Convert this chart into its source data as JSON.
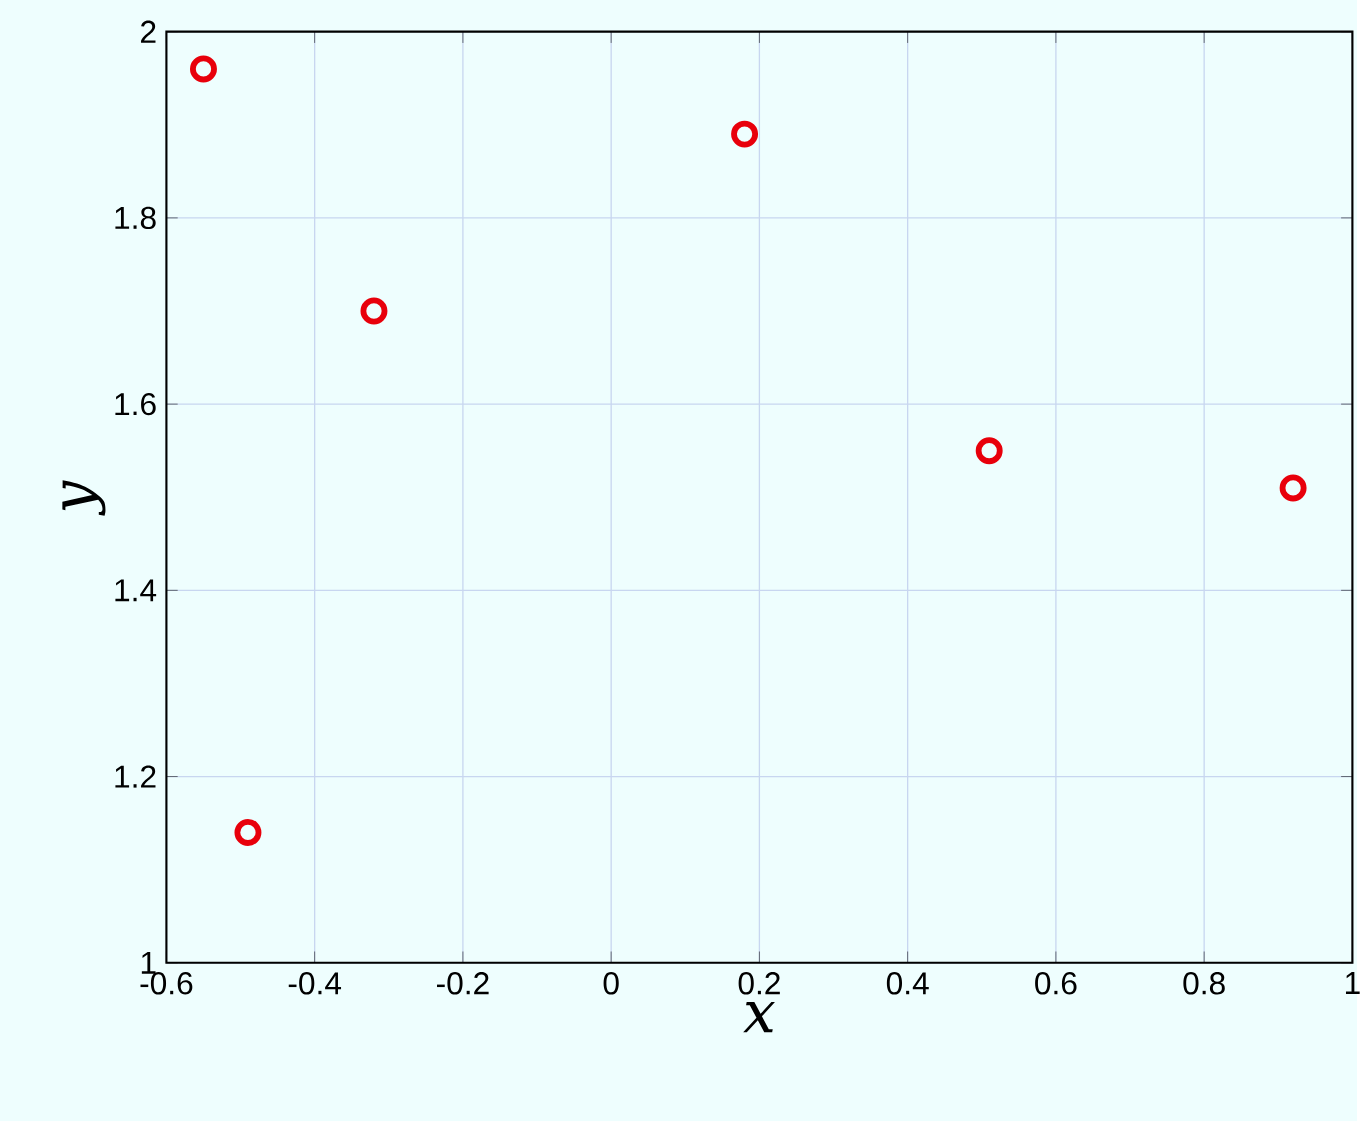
{
  "chart_data": {
    "type": "scatter",
    "xlabel": "x",
    "ylabel": "y",
    "x": [
      -0.55,
      -0.49,
      -0.32,
      0.18,
      0.51,
      0.92
    ],
    "series": [
      {
        "color": "#e8000b",
        "values": [
          1.96,
          1.14,
          1.7,
          1.89,
          1.55,
          1.51
        ]
      }
    ],
    "xlim": [
      -0.6,
      1
    ],
    "ylim": [
      1,
      2
    ],
    "xticks": [
      -0.6,
      -0.4,
      -0.2,
      0,
      0.2,
      0.4,
      0.6,
      0.8,
      1
    ],
    "yticks": [
      1,
      1.2,
      1.4,
      1.6,
      1.8,
      2
    ],
    "grid": true,
    "marker": "circle"
  }
}
